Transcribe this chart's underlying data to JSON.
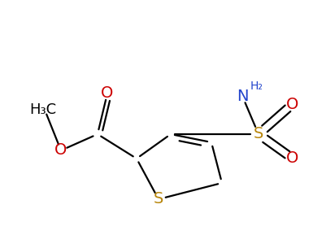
{
  "background_color": "#ffffff",
  "figsize": [
    3.85,
    3.05
  ],
  "dpi": 100,
  "line_width": 1.6,
  "atom_colors": {
    "S": "#b8860b",
    "O": "#cc0000",
    "N": "#2244cc",
    "C": "#000000"
  }
}
